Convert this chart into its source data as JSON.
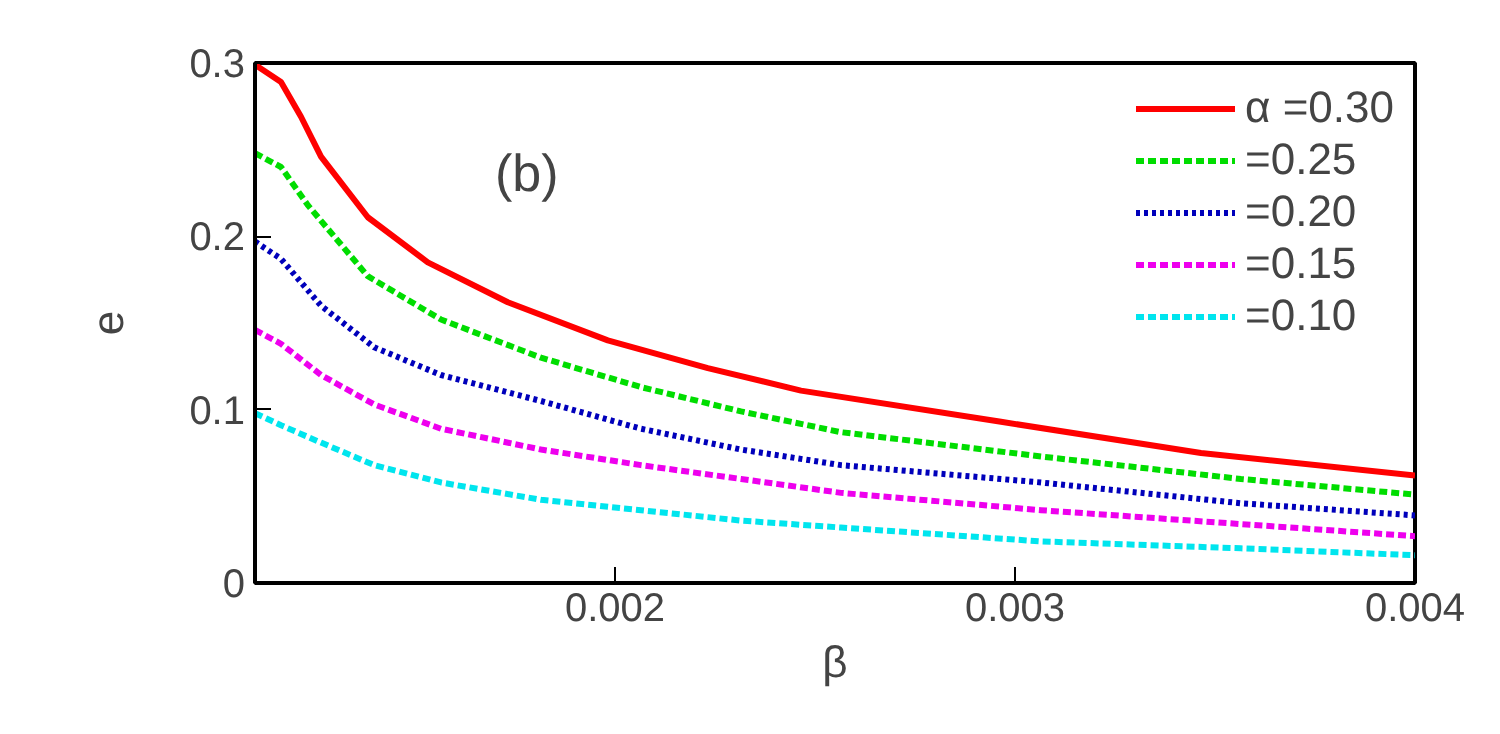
{
  "chart_data": {
    "type": "line",
    "xlabel": "β",
    "ylabel": "e",
    "annotations": [
      "(b)"
    ],
    "xlim": [
      0.0011,
      0.004
    ],
    "ylim": [
      0,
      0.3
    ],
    "xticks": [
      0.002,
      0.003,
      0.004
    ],
    "yticks": [
      0,
      0.1,
      0.2,
      0.3
    ],
    "grid": false,
    "legend": "top right",
    "marker": "none",
    "series": [
      {
        "name": "α =0.30",
        "color": "#ff0000",
        "line_style": "solid",
        "x": [
          0.0011,
          0.001165,
          0.001215,
          0.001265,
          0.001382,
          0.001532,
          0.001732,
          0.001982,
          0.002232,
          0.002465,
          0.002965,
          0.003465,
          0.004
        ],
        "values": [
          0.299,
          0.289,
          0.269,
          0.246,
          0.211,
          0.185,
          0.162,
          0.14,
          0.124,
          0.111,
          0.093,
          0.075,
          0.062
        ]
      },
      {
        "name": "=0.25",
        "color": "#00dd00",
        "line_style": "dashed",
        "x": [
          0.0011,
          0.001165,
          0.001232,
          0.001382,
          0.001565,
          0.001815,
          0.002065,
          0.002315,
          0.002565,
          0.003065,
          0.003565,
          0.004
        ],
        "values": [
          0.248,
          0.24,
          0.218,
          0.177,
          0.152,
          0.13,
          0.113,
          0.099,
          0.087,
          0.073,
          0.06,
          0.051
        ]
      },
      {
        "name": "=0.20",
        "color": "#0000bb",
        "line_style": "dotted",
        "x": [
          0.0011,
          0.001165,
          0.001265,
          0.001398,
          0.001565,
          0.001815,
          0.002065,
          0.002315,
          0.002565,
          0.003065,
          0.003565,
          0.004
        ],
        "values": [
          0.197,
          0.187,
          0.16,
          0.136,
          0.12,
          0.105,
          0.089,
          0.077,
          0.068,
          0.058,
          0.046,
          0.039
        ]
      },
      {
        "name": "=0.15",
        "color": "#ee00ee",
        "line_style": "dashed",
        "x": [
          0.0011,
          0.001165,
          0.001265,
          0.001398,
          0.001565,
          0.001815,
          0.002065,
          0.002315,
          0.002565,
          0.003065,
          0.003565,
          0.004
        ],
        "values": [
          0.146,
          0.138,
          0.12,
          0.103,
          0.089,
          0.077,
          0.068,
          0.06,
          0.052,
          0.042,
          0.034,
          0.027
        ]
      },
      {
        "name": "=0.10",
        "color": "#00e5ee",
        "line_style": "dashed",
        "x": [
          0.0011,
          0.001165,
          0.001265,
          0.001398,
          0.001565,
          0.001815,
          0.002065,
          0.002315,
          0.002565,
          0.003065,
          0.003565,
          0.004
        ],
        "values": [
          0.098,
          0.091,
          0.081,
          0.068,
          0.058,
          0.048,
          0.042,
          0.036,
          0.032,
          0.024,
          0.02,
          0.016
        ]
      }
    ]
  }
}
